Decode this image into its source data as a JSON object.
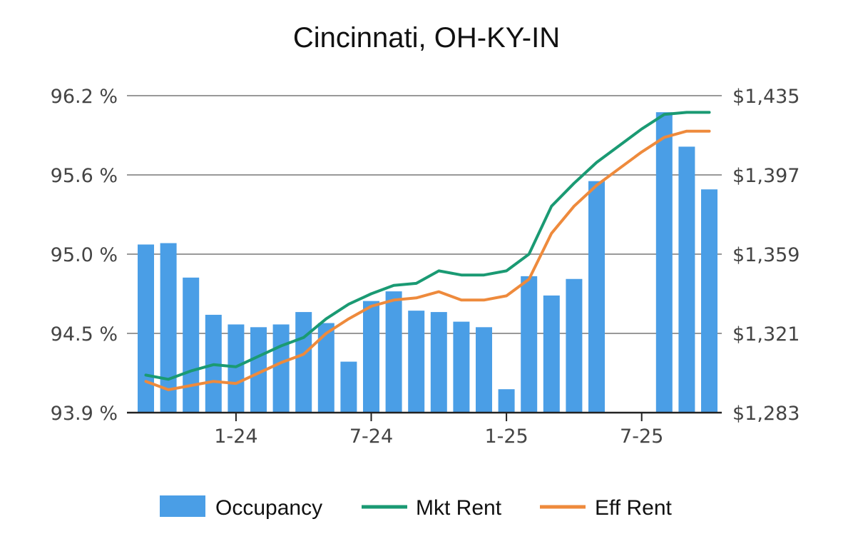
{
  "chart_data": {
    "type": "bar",
    "title": "Cincinnati, OH-KY-IN",
    "xlabel": "",
    "ylabel": "",
    "x_tick_labels": [
      {
        "month_index": 4,
        "label": "1-24"
      },
      {
        "month_index": 10,
        "label": "7-24"
      },
      {
        "month_index": 16,
        "label": "1-25"
      },
      {
        "month_index": 22,
        "label": "7-25"
      }
    ],
    "months": [
      "9-23",
      "10-23",
      "11-23",
      "12-23",
      "1-24",
      "2-24",
      "3-24",
      "4-24",
      "5-24",
      "6-24",
      "7-24",
      "8-24",
      "9-24",
      "10-24",
      "11-24",
      "12-24",
      "1-25",
      "2-25",
      "3-25",
      "4-25",
      "5-25",
      "6-25",
      "7-25",
      "8-25",
      "9-25",
      "10-25"
    ],
    "y_left": {
      "ylim": [
        93.9,
        96.2
      ],
      "ticks": [
        "96.2 %",
        "95.6 %",
        "95.0 %",
        "94.5 %",
        "93.9 %"
      ]
    },
    "y_right": {
      "ylim": [
        1283,
        1435
      ],
      "ticks": [
        "$1,435",
        "$1,397",
        "$1,359",
        "$1,321",
        "$1,283"
      ]
    },
    "grid": true,
    "legend_position": "bottom",
    "series": [
      {
        "name": "Occupancy",
        "kind": "bar",
        "axis": "left",
        "color": "#4A9EE6",
        "values": [
          95.12,
          95.13,
          94.88,
          94.61,
          94.54,
          94.52,
          94.54,
          94.63,
          94.55,
          94.27,
          94.71,
          94.78,
          94.64,
          94.63,
          94.56,
          94.52,
          94.07,
          94.89,
          94.75,
          94.87,
          95.58,
          null,
          null,
          96.08,
          95.83,
          95.52
        ]
      },
      {
        "name": "Mkt Rent",
        "kind": "line",
        "axis": "right",
        "color": "#1A9A73",
        "values": [
          1301,
          1299,
          1303,
          1306,
          1305,
          1310,
          1315,
          1319,
          1328,
          1335,
          1340,
          1344,
          1345,
          1351,
          1349,
          1349,
          1351,
          1359,
          1382,
          1393,
          1403,
          1411,
          1419,
          1426,
          1427,
          1427
        ]
      },
      {
        "name": "Eff Rent",
        "kind": "line",
        "axis": "right",
        "color": "#EE8A3C",
        "values": [
          1298,
          1294,
          1296,
          1298,
          1297,
          1302,
          1307,
          1311,
          1321,
          1328,
          1334,
          1337,
          1338,
          1341,
          1337,
          1337,
          1339,
          1347,
          1369,
          1382,
          1392,
          1400,
          1408,
          1415,
          1418,
          1418
        ]
      }
    ]
  }
}
